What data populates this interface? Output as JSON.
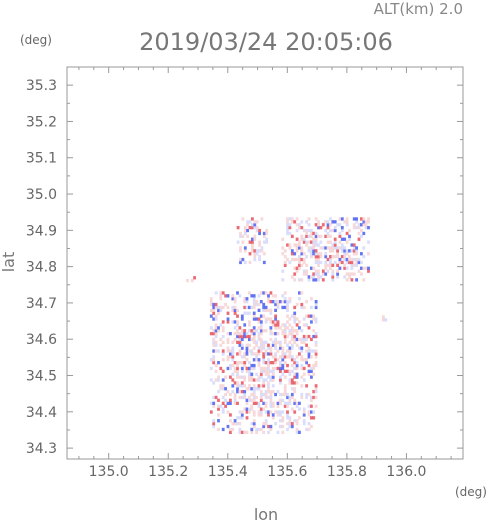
{
  "header": {
    "alt_label": "ALT(km) 2.0",
    "timestamp": "2019/03/24 20:05:06",
    "unit_y": "(deg)",
    "unit_x": "(deg)"
  },
  "chart_data": {
    "type": "heatmap",
    "title": "2019/03/24 20:05:06",
    "subtitle": "ALT(km) 2.0",
    "xlabel": "lon",
    "ylabel": "lat",
    "x_unit": "(deg)",
    "y_unit": "(deg)",
    "xlim": [
      134.86,
      136.19
    ],
    "ylim": [
      34.27,
      35.35
    ],
    "x_ticks": [
      135.0,
      135.2,
      135.4,
      135.6,
      135.8,
      136.0
    ],
    "x_tick_labels": [
      "135.0",
      "135.2",
      "135.4",
      "135.6",
      "135.8",
      "136.0"
    ],
    "y_ticks": [
      34.3,
      34.4,
      34.5,
      34.6,
      34.7,
      34.8,
      34.9,
      35.0,
      35.1,
      35.2,
      35.3
    ],
    "y_tick_labels": [
      "34.3",
      "34.4",
      "34.5",
      "34.6",
      "34.7",
      "34.8",
      "34.9",
      "35.0",
      "35.1",
      "35.2",
      "35.3"
    ],
    "grid": false,
    "colors": {
      "positive": "#e8505a",
      "negative": "#4a5ef0",
      "faint_positive": "#f6d2d4",
      "faint_negative": "#d4d8fa"
    },
    "regions": [
      {
        "lon_range": [
          135.34,
          135.7
        ],
        "lat_range": [
          34.34,
          34.73
        ],
        "intensity": 0.45
      },
      {
        "lon_range": [
          135.58,
          135.87
        ],
        "lat_range": [
          34.76,
          34.93
        ],
        "intensity": 0.5
      },
      {
        "lon_range": [
          135.43,
          135.53
        ],
        "lat_range": [
          34.8,
          34.93
        ],
        "intensity": 0.3
      },
      {
        "lon_range": [
          135.26,
          135.29
        ],
        "lat_range": [
          34.75,
          34.77
        ],
        "intensity": 0.4
      },
      {
        "lon_range": [
          135.91,
          135.93
        ],
        "lat_range": [
          34.65,
          34.67
        ],
        "intensity": 0.4
      }
    ]
  }
}
